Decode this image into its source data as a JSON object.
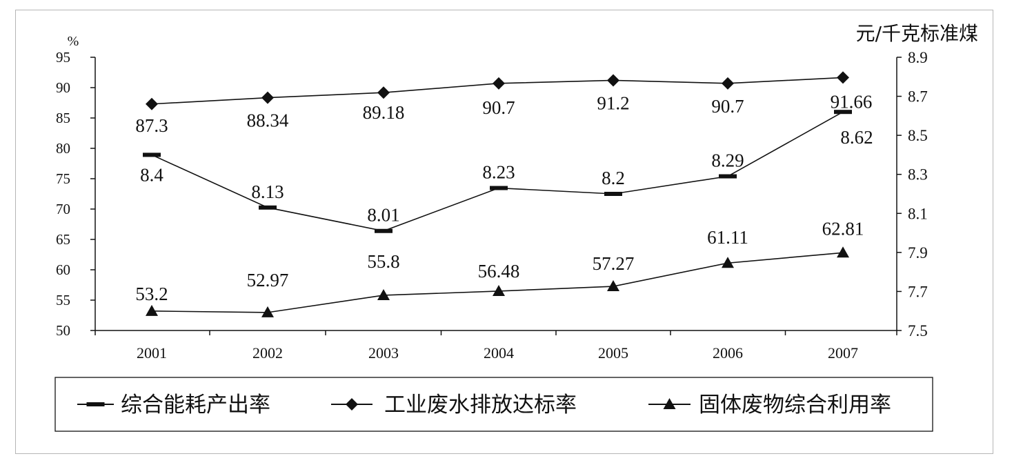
{
  "chart_data": {
    "type": "line",
    "x": [
      "2001",
      "2002",
      "2003",
      "2004",
      "2005",
      "2006",
      "2007"
    ],
    "left_axis": {
      "unit": "%",
      "ylim": [
        50,
        95
      ],
      "ticks": [
        95,
        90,
        85,
        80,
        75,
        70,
        65,
        60,
        55,
        50
      ]
    },
    "right_axis": {
      "unit": "元/千克标准煤",
      "ylim": [
        7.5,
        8.9
      ],
      "ticks": [
        "8.9",
        "8.7",
        "8.5",
        "8.3",
        "8.1",
        "7.9",
        "7.7",
        "7.5"
      ]
    },
    "series": [
      {
        "name": "综合能耗产出率",
        "axis": "right",
        "marker": "dash",
        "values": [
          8.4,
          8.13,
          8.01,
          8.23,
          8.2,
          8.29,
          8.62
        ],
        "labels": [
          "8.4",
          "8.13",
          "8.01",
          "8.23",
          "8.2",
          "8.29",
          "8.62"
        ]
      },
      {
        "name": "工业废水排放达标率",
        "axis": "left",
        "marker": "diamond",
        "values": [
          87.3,
          88.34,
          89.18,
          90.7,
          91.2,
          90.7,
          91.66
        ],
        "labels": [
          "87.3",
          "88.34",
          "89.18",
          "90.7",
          "91.2",
          "90.7",
          "91.66"
        ]
      },
      {
        "name": "固体废物综合利用率",
        "axis": "left",
        "marker": "triangle",
        "values": [
          53.2,
          52.97,
          55.8,
          56.48,
          57.27,
          61.11,
          62.81
        ],
        "labels": [
          "53.2",
          "52.97",
          "55.8",
          "56.48",
          "57.27",
          "61.11",
          "62.81"
        ]
      }
    ],
    "legend": {
      "position": "bottom"
    },
    "grid": false,
    "colors": {
      "line": "#111111",
      "frame": "#b5b5b5"
    }
  }
}
